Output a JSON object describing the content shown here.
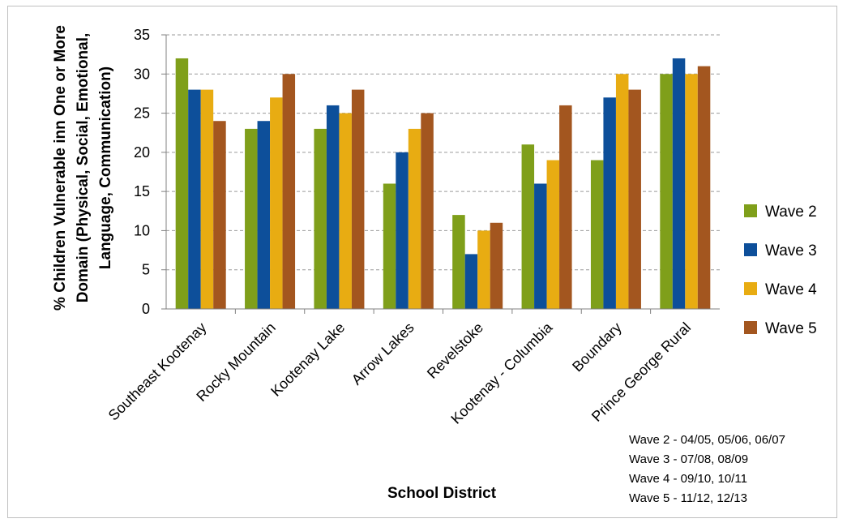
{
  "chart_data": {
    "type": "bar",
    "categories": [
      "Southeast Kootenay",
      "Rocky Mountain",
      "Kootenay Lake",
      "Arrow Lakes",
      "Revelstoke",
      "Kootenay - Columbia",
      "Boundary",
      "Prince George Rural"
    ],
    "series": [
      {
        "name": "Wave 2",
        "values": [
          32,
          23,
          23,
          16,
          12,
          21,
          19,
          30
        ],
        "color": "#7f9f1a"
      },
      {
        "name": "Wave 3",
        "values": [
          28,
          24,
          26,
          20,
          7,
          16,
          27,
          32
        ],
        "color": "#0d4f9a"
      },
      {
        "name": "Wave 4",
        "values": [
          28,
          27,
          25,
          23,
          10,
          19,
          30,
          30
        ],
        "color": "#e8ac12"
      },
      {
        "name": "Wave 5",
        "values": [
          24,
          30,
          28,
          25,
          11,
          26,
          28,
          31
        ],
        "color": "#a3561f"
      }
    ],
    "xlabel": "School District",
    "ylabel": [
      "% Children Vulnerable inn One or More",
      "Domain (Physical, Social, Emotional,",
      "Language, Communication)"
    ],
    "ylim": [
      0,
      35
    ],
    "yticks": [
      0,
      5,
      10,
      15,
      20,
      25,
      30,
      35
    ],
    "grid": true,
    "legend_position": "right",
    "notes": [
      "Wave 2 - 04/05, 05/06, 06/07",
      "Wave 3 - 07/08, 08/09",
      "Wave 4 - 09/10, 10/11",
      "Wave 5 - 11/12, 12/13"
    ]
  }
}
